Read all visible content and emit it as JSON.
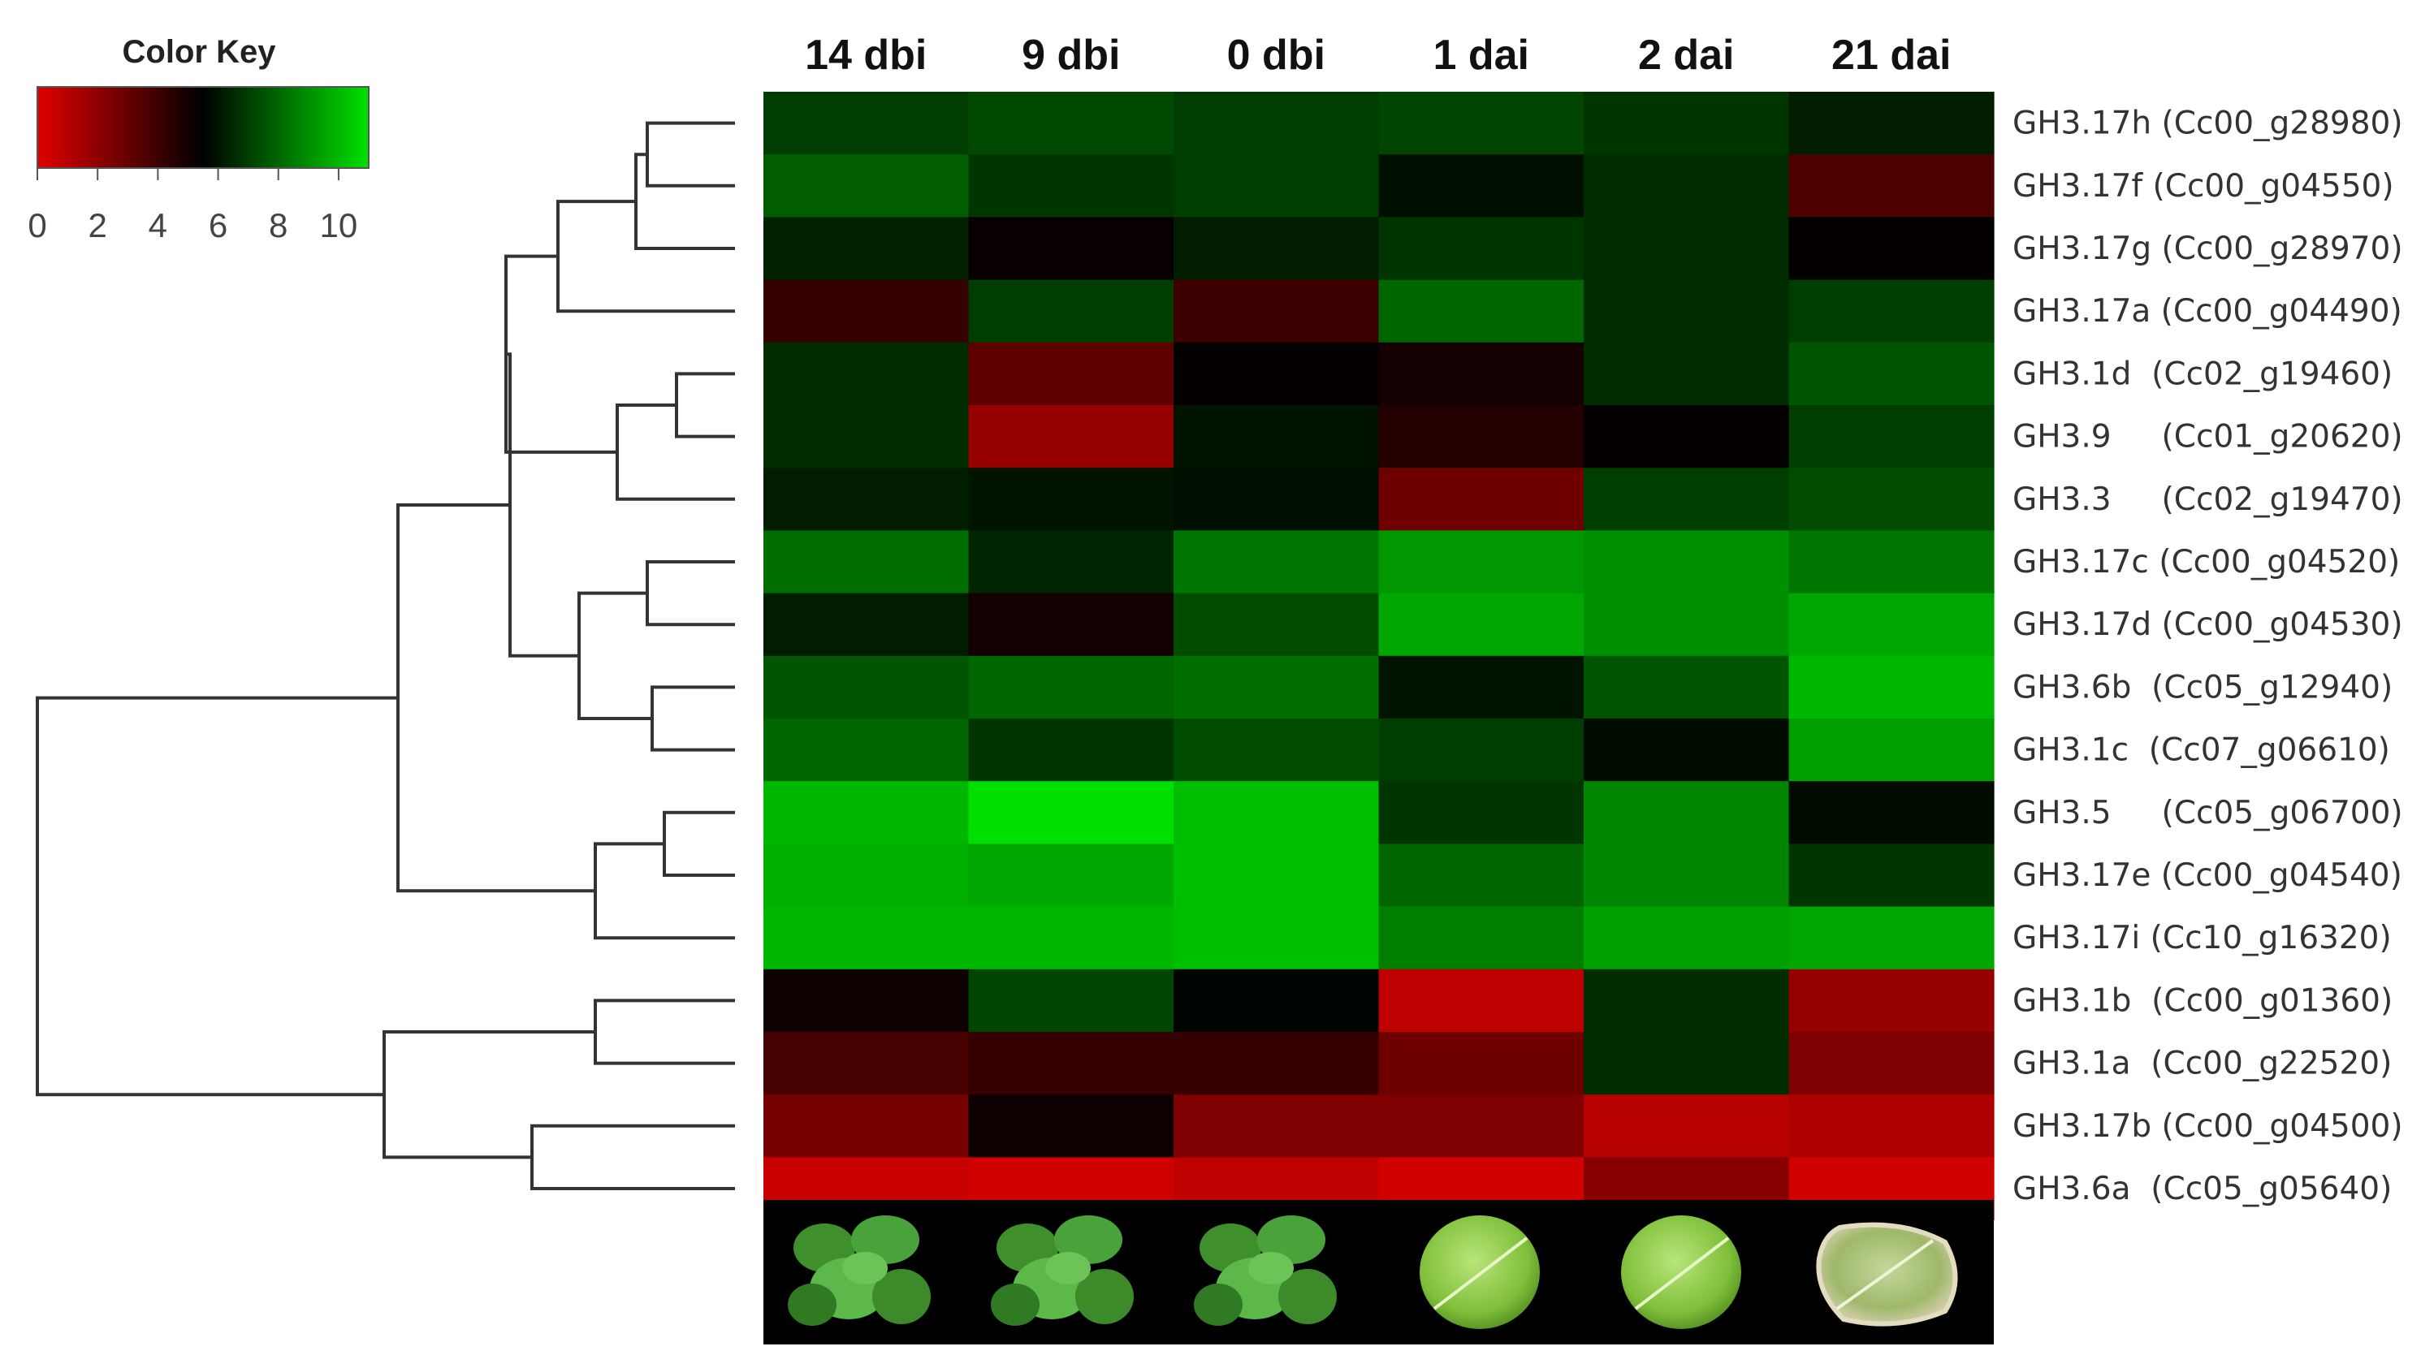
{
  "chart_data": {
    "type": "heatmap",
    "color_key": {
      "title": "Color Key",
      "ticks": [
        0,
        2,
        4,
        6,
        8,
        10
      ],
      "range": [
        0,
        11
      ],
      "colors": {
        "low": "#e00000",
        "mid": "#000000",
        "high": "#00e000"
      }
    },
    "columns": [
      "14 dbi",
      "9 dbi",
      "0 dbi",
      "1 dai",
      "2 dai",
      "21 dai"
    ],
    "rows": [
      {
        "label": "GH3.17h (Cc00_g28980)",
        "values": [
          7.0,
          7.3,
          7.0,
          7.2,
          6.8,
          6.2
        ]
      },
      {
        "label": "GH3.17f (Cc00_g04550)",
        "values": [
          7.8,
          6.8,
          7.0,
          5.9,
          6.6,
          3.6
        ]
      },
      {
        "label": "GH3.17g (Cc00_g28970)",
        "values": [
          6.3,
          5.3,
          6.2,
          6.8,
          6.6,
          5.4
        ]
      },
      {
        "label": "GH3.17a (Cc00_g04490)",
        "values": [
          4.2,
          7.0,
          4.0,
          8.0,
          6.6,
          7.0
        ]
      },
      {
        "label": "GH3.1d  (Cc02_g19460)",
        "values": [
          6.6,
          3.2,
          5.4,
          5.0,
          6.6,
          7.6
        ]
      },
      {
        "label": "GH3.9     (Cc01_g20620)",
        "values": [
          6.6,
          1.8,
          6.0,
          4.6,
          5.4,
          7.0
        ]
      },
      {
        "label": "GH3.3     (Cc02_g19470)",
        "values": [
          6.2,
          6.0,
          5.9,
          2.8,
          7.0,
          7.4
        ]
      },
      {
        "label": "GH3.17c (Cc00_g04520)",
        "values": [
          8.2,
          6.4,
          8.4,
          9.2,
          9.0,
          8.4
        ]
      },
      {
        "label": "GH3.17d (Cc00_g04530)",
        "values": [
          6.2,
          5.0,
          7.4,
          9.6,
          9.0,
          9.6
        ]
      },
      {
        "label": "GH3.6b  (Cc05_g12940)",
        "values": [
          7.6,
          8.0,
          8.2,
          6.0,
          7.6,
          10.0
        ]
      },
      {
        "label": "GH3.1c  (Cc07_g06610)",
        "values": [
          8.0,
          6.8,
          7.4,
          7.0,
          5.8,
          9.4
        ]
      },
      {
        "label": "GH3.5     (Cc05_g06700)",
        "values": [
          10.0,
          11.0,
          10.2,
          6.8,
          8.8,
          5.8
        ]
      },
      {
        "label": "GH3.17e (Cc00_g04540)",
        "values": [
          9.8,
          9.6,
          10.2,
          8.0,
          8.8,
          6.8
        ]
      },
      {
        "label": "GH3.17i (Cc10_g16320)",
        "values": [
          10.0,
          10.0,
          10.2,
          8.6,
          9.4,
          9.6
        ]
      },
      {
        "label": "GH3.1b  (Cc00_g01360)",
        "values": [
          5.2,
          7.2,
          5.6,
          0.8,
          6.6,
          1.8
        ]
      },
      {
        "label": "GH3.1a  (Cc00_g22520)",
        "values": [
          3.8,
          4.2,
          4.2,
          2.8,
          6.6,
          2.4
        ]
      },
      {
        "label": "GH3.17b (Cc00_g04500)",
        "values": [
          2.6,
          5.2,
          2.4,
          2.4,
          1.0,
          1.2
        ]
      },
      {
        "label": "GH3.6a  (Cc05_g05640)",
        "values": [
          0.6,
          0.4,
          0.8,
          0.4,
          2.2,
          0.4
        ]
      }
    ],
    "row_dendrogram": "merges"
  }
}
